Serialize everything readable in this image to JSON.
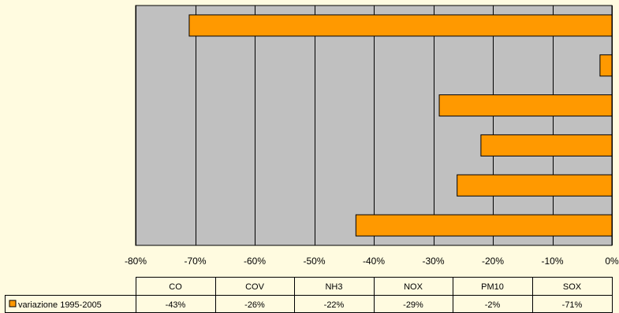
{
  "chart_data": {
    "type": "bar",
    "orientation": "horizontal",
    "categories": [
      "CO",
      "COV",
      "NH3",
      "NOX",
      "PM10",
      "SOX"
    ],
    "series": [
      {
        "name": "variazione 1995-2005",
        "values": [
          -43,
          -26,
          -22,
          -29,
          -2,
          -71
        ]
      }
    ],
    "value_labels": [
      "-43%",
      "-26%",
      "-22%",
      "-29%",
      "-2%",
      "-71%"
    ],
    "xlim": [
      -80,
      0
    ],
    "x_ticks": [
      -80,
      -70,
      -60,
      -50,
      -40,
      -30,
      -20,
      -10,
      0
    ],
    "x_tick_labels": [
      "-80%",
      "-70%",
      "-60%",
      "-50%",
      "-40%",
      "-30%",
      "-20%",
      "-10%",
      "0%"
    ],
    "category_order_top_to_bottom": [
      "SOX",
      "PM10",
      "NOX",
      "NH3",
      "COV",
      "CO"
    ],
    "grid": "vertical",
    "legend": "data-table",
    "colors": {
      "bar": "#ff9900",
      "bar_stroke": "#000000",
      "plot_background": "#c0c0c0",
      "page_background": "#fffbe0"
    }
  }
}
